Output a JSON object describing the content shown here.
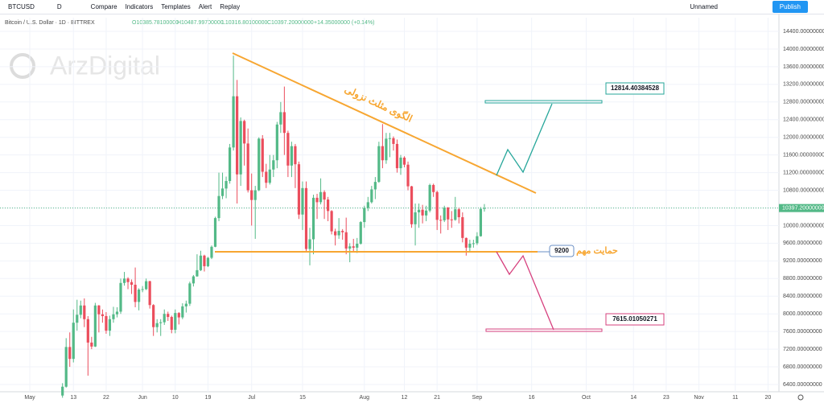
{
  "toolbar": {
    "symbol": "BTCUSD",
    "interval": "D",
    "compare": "Compare",
    "indicators": "Indicators",
    "templates": "Templates",
    "alert": "Alert",
    "replay": "Replay",
    "layout": "Unnamed",
    "publish": "Publish"
  },
  "chart_data": {
    "type": "candlestick",
    "legend": {
      "name": "Bitcoin / U.S. Dollar · 1D · BITTREX",
      "open": "O10385.78100000",
      "high": "H10487.99700000",
      "low": "L10316.80100000",
      "close": "C10397.20000000",
      "change": "+14.35000000 (+0.14%)"
    },
    "watermark": "ArzDigital",
    "up_color": "#53b987",
    "down_color": "#eb4d5c",
    "xlim": [
      -8.19,
      206
    ],
    "ylim": [
      6236,
      14710
    ],
    "xticks": [
      {
        "value": 0,
        "label": "May"
      },
      {
        "value": 12,
        "label": "13"
      },
      {
        "value": 21,
        "label": "22"
      },
      {
        "value": 31,
        "label": "Jun"
      },
      {
        "value": 40,
        "label": "10"
      },
      {
        "value": 49,
        "label": "19"
      },
      {
        "value": 61,
        "label": "Jul"
      },
      {
        "value": 75,
        "label": "15"
      },
      {
        "value": 92,
        "label": "Aug"
      },
      {
        "value": 103,
        "label": "12"
      },
      {
        "value": 112,
        "label": "21"
      },
      {
        "value": 123,
        "label": "Sep"
      },
      {
        "value": 138,
        "label": "16"
      },
      {
        "value": 153,
        "label": "Oct"
      },
      {
        "value": 166,
        "label": "14"
      },
      {
        "value": 175,
        "label": "23"
      },
      {
        "value": 184,
        "label": "Nov"
      },
      {
        "value": 194,
        "label": "11"
      },
      {
        "value": 203,
        "label": "20"
      }
    ],
    "yticks": [
      {
        "value": 6400,
        "label": "6400.00000000"
      },
      {
        "value": 6800,
        "label": "6800.00000000"
      },
      {
        "value": 7200,
        "label": "7200.00000000"
      },
      {
        "value": 7600,
        "label": "7600.00000000"
      },
      {
        "value": 8000,
        "label": "8000.00000000"
      },
      {
        "value": 8400,
        "label": "8400.00000000"
      },
      {
        "value": 8800,
        "label": "8800.00000000"
      },
      {
        "value": 9200,
        "label": "9200.00000000"
      },
      {
        "value": 9600,
        "label": "9600.00000000"
      },
      {
        "value": 10000,
        "label": "10000.00000000"
      },
      {
        "value": 10400,
        "label": "10400.00000000"
      },
      {
        "value": 10800,
        "label": "10800.00000000"
      },
      {
        "value": 11200,
        "label": "11200.00000000"
      },
      {
        "value": 11600,
        "label": "11600.00000000"
      },
      {
        "value": 12000,
        "label": "12000.00000000"
      },
      {
        "value": 12400,
        "label": "12400.00000000"
      },
      {
        "value": 12800,
        "label": "12800.00000000"
      },
      {
        "value": 13200,
        "label": "13200.00000000"
      },
      {
        "value": 13600,
        "label": "13600.00000000"
      },
      {
        "value": 14000,
        "label": "14000.00000000"
      },
      {
        "value": 14400,
        "label": "14400.00000000"
      }
    ],
    "last_price": {
      "value": 10397.2,
      "label": "10397.20000000"
    },
    "annotations": {
      "triangle": "الگوی مثلث نزولی",
      "support": "حمایت مهم",
      "support_level": "9200",
      "target_up": "12814.40384528",
      "target_down": "7615.01050271"
    },
    "candles": [
      [
        9,
        6150,
        6430,
        6100,
        6350
      ],
      [
        10,
        6350,
        7450,
        6330,
        7250
      ],
      [
        11,
        7250,
        7580,
        6800,
        6980
      ],
      [
        12,
        6980,
        8100,
        6900,
        7800
      ],
      [
        13,
        7800,
        8320,
        7620,
        7980
      ],
      [
        14,
        7980,
        8300,
        7900,
        8190
      ],
      [
        15,
        8190,
        8350,
        7700,
        7880
      ],
      [
        16,
        7880,
        7950,
        6600,
        7350
      ],
      [
        17,
        7350,
        7480,
        7200,
        7260
      ],
      [
        18,
        7260,
        8250,
        7250,
        8190
      ],
      [
        19,
        8190,
        8200,
        7580,
        7990
      ],
      [
        20,
        7990,
        8100,
        7800,
        7950
      ],
      [
        21,
        7950,
        8040,
        7550,
        7620
      ],
      [
        22,
        7620,
        7960,
        7500,
        7880
      ],
      [
        23,
        7880,
        8160,
        7800,
        7990
      ],
      [
        24,
        7990,
        8150,
        7920,
        8050
      ],
      [
        25,
        8050,
        8800,
        8000,
        8700
      ],
      [
        26,
        8700,
        8950,
        8640,
        8800
      ],
      [
        27,
        8800,
        8830,
        8560,
        8720
      ],
      [
        28,
        8720,
        8780,
        8450,
        8660
      ],
      [
        29,
        8660,
        9050,
        8150,
        8270
      ],
      [
        30,
        8270,
        8580,
        8080,
        8550
      ],
      [
        31,
        8550,
        8630,
        8490,
        8560
      ],
      [
        32,
        8560,
        8800,
        8540,
        8740
      ],
      [
        33,
        8740,
        8750,
        8120,
        8200
      ],
      [
        34,
        8200,
        8220,
        7500,
        7700
      ],
      [
        35,
        7700,
        7880,
        7580,
        7790
      ],
      [
        36,
        7790,
        7880,
        7500,
        7810
      ],
      [
        37,
        7810,
        8100,
        7750,
        8000
      ],
      [
        38,
        8000,
        8050,
        7840,
        7930
      ],
      [
        39,
        7930,
        7960,
        7560,
        7640
      ],
      [
        40,
        7640,
        8100,
        7560,
        8020
      ],
      [
        41,
        8020,
        8040,
        7760,
        7920
      ],
      [
        42,
        7920,
        8240,
        7880,
        8170
      ],
      [
        43,
        8170,
        8300,
        8030,
        8230
      ],
      [
        44,
        8230,
        8730,
        8180,
        8690
      ],
      [
        45,
        8690,
        8880,
        8620,
        8850
      ],
      [
        46,
        8850,
        9350,
        8840,
        8990
      ],
      [
        47,
        8990,
        9430,
        8970,
        9320
      ],
      [
        48,
        9320,
        9340,
        8960,
        9080
      ],
      [
        49,
        9080,
        9290,
        9060,
        9270
      ],
      [
        50,
        9270,
        9550,
        9240,
        9520
      ],
      [
        51,
        9520,
        10200,
        9510,
        10170
      ],
      [
        52,
        10170,
        11200,
        10100,
        10670
      ],
      [
        53,
        10670,
        11200,
        10600,
        10840
      ],
      [
        54,
        10840,
        11110,
        10620,
        11010
      ],
      [
        55,
        11010,
        11850,
        10950,
        11770
      ],
      [
        56,
        11770,
        13850,
        11700,
        12930
      ],
      [
        57,
        12930,
        13300,
        10500,
        11160
      ],
      [
        58,
        11160,
        12450,
        10900,
        12370
      ],
      [
        59,
        12370,
        12400,
        11360,
        11860
      ],
      [
        60,
        11860,
        12200,
        10750,
        10800
      ],
      [
        61,
        10800,
        11180,
        10000,
        10580
      ],
      [
        62,
        10580,
        10900,
        9700,
        10800
      ],
      [
        63,
        10800,
        12000,
        10780,
        11970
      ],
      [
        64,
        11970,
        12050,
        11100,
        11220
      ],
      [
        65,
        11220,
        11400,
        10850,
        10970
      ],
      [
        66,
        10970,
        11600,
        10930,
        11270
      ],
      [
        67,
        11270,
        11600,
        11100,
        11480
      ],
      [
        68,
        11480,
        12350,
        11300,
        12290
      ],
      [
        69,
        12290,
        12800,
        12100,
        12570
      ],
      [
        70,
        12570,
        13150,
        11600,
        12100
      ],
      [
        71,
        12100,
        12150,
        11100,
        11360
      ],
      [
        72,
        11360,
        11900,
        11100,
        11800
      ],
      [
        73,
        11800,
        11850,
        10850,
        11390
      ],
      [
        74,
        11390,
        11450,
        10150,
        10250
      ],
      [
        75,
        10250,
        11000,
        9900,
        10850
      ],
      [
        76,
        10850,
        11000,
        9400,
        9470
      ],
      [
        77,
        9470,
        9950,
        9100,
        9690
      ],
      [
        78,
        9690,
        10700,
        9350,
        10630
      ],
      [
        79,
        10630,
        10720,
        10150,
        10530
      ],
      [
        80,
        10530,
        11070,
        10480,
        10760
      ],
      [
        81,
        10760,
        10800,
        10150,
        10590
      ],
      [
        82,
        10590,
        10650,
        10100,
        10330
      ],
      [
        83,
        10330,
        10350,
        9800,
        9870
      ],
      [
        84,
        9870,
        9930,
        9550,
        9780
      ],
      [
        85,
        9780,
        10170,
        9700,
        9880
      ],
      [
        86,
        9880,
        9920,
        9680,
        9850
      ],
      [
        87,
        9850,
        10180,
        9350,
        9480
      ],
      [
        88,
        9480,
        9600,
        9170,
        9530
      ],
      [
        89,
        9530,
        9700,
        9420,
        9500
      ],
      [
        90,
        9500,
        9720,
        9380,
        9590
      ],
      [
        91,
        9590,
        10100,
        9570,
        10080
      ],
      [
        92,
        10080,
        10450,
        9950,
        10400
      ],
      [
        93,
        10400,
        10650,
        10330,
        10530
      ],
      [
        94,
        10530,
        10900,
        10500,
        10820
      ],
      [
        95,
        10820,
        11100,
        10600,
        10990
      ],
      [
        96,
        10990,
        11900,
        10970,
        11800
      ],
      [
        97,
        11800,
        12300,
        11300,
        11480
      ],
      [
        98,
        11480,
        12100,
        11400,
        11970
      ],
      [
        99,
        11970,
        12100,
        11550,
        11980
      ],
      [
        100,
        11980,
        12020,
        11700,
        11850
      ],
      [
        101,
        11850,
        11950,
        11200,
        11300
      ],
      [
        102,
        11300,
        11600,
        11150,
        11540
      ],
      [
        103,
        11540,
        11570,
        11320,
        11380
      ],
      [
        104,
        11380,
        11450,
        10800,
        10890
      ],
      [
        105,
        10890,
        10900,
        9950,
        10030
      ],
      [
        106,
        10030,
        10500,
        9550,
        10300
      ],
      [
        107,
        10300,
        10500,
        9950,
        10360
      ],
      [
        108,
        10360,
        10470,
        10050,
        10230
      ],
      [
        109,
        10230,
        10450,
        10100,
        10340
      ],
      [
        110,
        10340,
        10950,
        10300,
        10920
      ],
      [
        111,
        10920,
        10950,
        10650,
        10760
      ],
      [
        112,
        10760,
        10790,
        9900,
        10130
      ],
      [
        113,
        10130,
        10230,
        9820,
        10120
      ],
      [
        114,
        10120,
        10450,
        10080,
        10410
      ],
      [
        115,
        10410,
        10420,
        9900,
        10140
      ],
      [
        116,
        10140,
        10330,
        9950,
        10130
      ],
      [
        117,
        10130,
        10650,
        10110,
        10370
      ],
      [
        118,
        10370,
        10400,
        10050,
        10190
      ],
      [
        119,
        10190,
        10300,
        9620,
        9720
      ],
      [
        120,
        9720,
        9730,
        9320,
        9500
      ],
      [
        121,
        9500,
        9680,
        9420,
        9590
      ],
      [
        122,
        9590,
        9680,
        9500,
        9600
      ],
      [
        123,
        9600,
        9850,
        9560,
        9760
      ],
      [
        124,
        9760,
        10420,
        9750,
        10380
      ],
      [
        125,
        10385.781,
        10487.997,
        10316.801,
        10397.2
      ]
    ]
  }
}
